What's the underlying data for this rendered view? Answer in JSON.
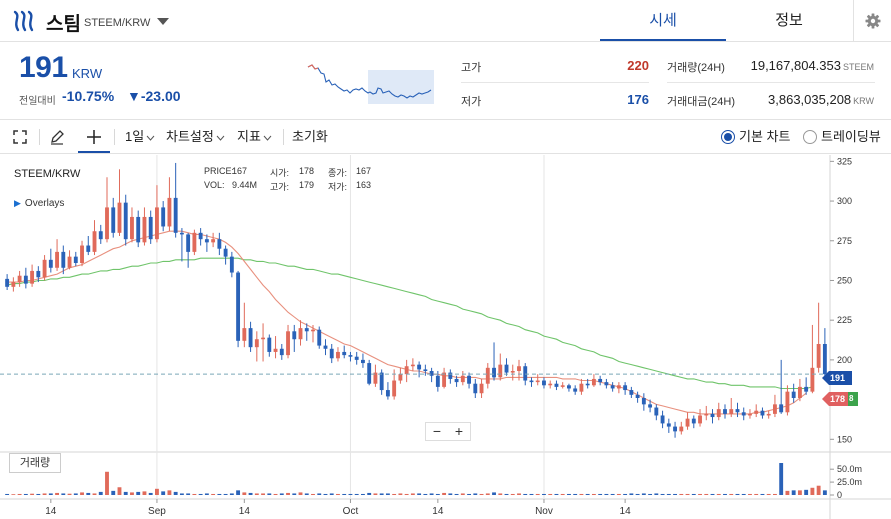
{
  "header": {
    "coin_name": "스팀",
    "pair": "STEEM/KRW",
    "tabs": [
      {
        "label": "시세",
        "active": true
      },
      {
        "label": "정보",
        "active": false
      }
    ],
    "icons": {
      "logo": "steem-logo-icon",
      "dropdown": "caret-down-icon",
      "settings": "gear-icon"
    }
  },
  "summary": {
    "price": "191",
    "unit": "KRW",
    "prev_label": "전일대비",
    "change_pct": "-10.75%",
    "change_abs": "▼-23.00",
    "high_label": "고가",
    "high_value": "220",
    "low_label": "저가",
    "low_value": "176",
    "volume_label": "거래량(24H)",
    "volume_value": "19,167,804.353",
    "volume_unit": "STEEM",
    "amount_label": "거래대금(24H)",
    "amount_value": "3,863,035,208",
    "amount_unit": "KRW"
  },
  "toolbar": {
    "interval": "1일",
    "chart_settings": "차트설정",
    "indicators": "지표",
    "reset": "초기화",
    "chart_mode_basic": "기본 차트",
    "chart_mode_tradingview": "트레이딩뷰",
    "icons": {
      "fullscreen": "fullscreen-icon",
      "draw": "pencil-icon",
      "crosshair": "crosshair-icon",
      "dropdown": "chevron-down-icon"
    }
  },
  "chart": {
    "symbol": "STEEM/KRW",
    "overlays_label": "Overlays",
    "legend": {
      "price_label": "PRICE:",
      "price_value": "167",
      "open_label": "시가:",
      "open_value": "178",
      "close_label": "종가:",
      "close_value": "167",
      "vol_label": "VOL:",
      "vol_value": "9.44M",
      "high_label": "고가:",
      "high_value": "179",
      "low_label": "저가:",
      "low_value": "163"
    },
    "volume_button": "거래량",
    "current_price_tag": "191",
    "ma_tag": "178",
    "zoom_minus": "−",
    "zoom_plus": "+",
    "colors": {
      "up": "#e06a5a",
      "down": "#2a62b8",
      "ma_short": "#e8907e",
      "ma_long": "#6fc46a",
      "current": "#1a4fa8"
    }
  },
  "chart_data": {
    "type": "candlestick",
    "y_ticks": [
      150,
      175,
      200,
      225,
      250,
      275,
      300,
      325
    ],
    "ylim": [
      142,
      329
    ],
    "volume_ticks": [
      "50.0m",
      "25.0m",
      "0"
    ],
    "x_ticks": [
      "14",
      "Sep",
      "14",
      "Oct",
      "14",
      "Nov",
      "14"
    ],
    "candles": [
      [
        251,
        246,
        254,
        244
      ],
      [
        246,
        249,
        252,
        243
      ],
      [
        249,
        253,
        256,
        246
      ],
      [
        253,
        248,
        258,
        245
      ],
      [
        248,
        256,
        260,
        246
      ],
      [
        256,
        252,
        259,
        249
      ],
      [
        252,
        263,
        266,
        250
      ],
      [
        263,
        258,
        270,
        255
      ],
      [
        258,
        268,
        276,
        256
      ],
      [
        268,
        258,
        272,
        254
      ],
      [
        258,
        265,
        269,
        257
      ],
      [
        265,
        261,
        268,
        259
      ],
      [
        261,
        272,
        275,
        259
      ],
      [
        272,
        268,
        278,
        266
      ],
      [
        268,
        281,
        288,
        266
      ],
      [
        281,
        276,
        285,
        273
      ],
      [
        276,
        296,
        315,
        274
      ],
      [
        296,
        280,
        302,
        277
      ],
      [
        280,
        299,
        320,
        278
      ],
      [
        299,
        276,
        304,
        272
      ],
      [
        276,
        290,
        296,
        274
      ],
      [
        290,
        274,
        294,
        271
      ],
      [
        274,
        290,
        296,
        272
      ],
      [
        290,
        276,
        294,
        273
      ],
      [
        276,
        296,
        310,
        274
      ],
      [
        296,
        284,
        300,
        281
      ],
      [
        284,
        302,
        315,
        281
      ],
      [
        302,
        280,
        324,
        277
      ],
      [
        280,
        279,
        283,
        262
      ],
      [
        279,
        268,
        280,
        258
      ],
      [
        268,
        280,
        282,
        266
      ],
      [
        280,
        276,
        283,
        272
      ],
      [
        276,
        274,
        279,
        268
      ],
      [
        274,
        276,
        280,
        271
      ],
      [
        276,
        270,
        280,
        266
      ],
      [
        270,
        265,
        272,
        260
      ],
      [
        265,
        255,
        268,
        252
      ],
      [
        255,
        212,
        256,
        208
      ],
      [
        212,
        220,
        236,
        208
      ],
      [
        220,
        208,
        224,
        205
      ],
      [
        208,
        213,
        218,
        199
      ],
      [
        213,
        214,
        223,
        199
      ],
      [
        214,
        205,
        216,
        202
      ],
      [
        205,
        207,
        215,
        201
      ],
      [
        207,
        203,
        210,
        200
      ],
      [
        203,
        218,
        222,
        201
      ],
      [
        218,
        213,
        222,
        205
      ],
      [
        213,
        220,
        225,
        209
      ],
      [
        220,
        218,
        223,
        212
      ],
      [
        218,
        219,
        222,
        211
      ],
      [
        219,
        209,
        221,
        207
      ],
      [
        209,
        207,
        213,
        203
      ],
      [
        207,
        201,
        210,
        198
      ],
      [
        201,
        205,
        208,
        199
      ],
      [
        205,
        203,
        209,
        201
      ],
      [
        203,
        202,
        205,
        199
      ],
      [
        202,
        200,
        205,
        197
      ],
      [
        200,
        198,
        204,
        195
      ],
      [
        198,
        185,
        200,
        184
      ],
      [
        185,
        192,
        197,
        183
      ],
      [
        192,
        181,
        194,
        178
      ],
      [
        181,
        177,
        186,
        175
      ],
      [
        177,
        187,
        194,
        175
      ],
      [
        187,
        191,
        195,
        185
      ],
      [
        191,
        196,
        200,
        186
      ],
      [
        196,
        197,
        201,
        193
      ],
      [
        197,
        194,
        199,
        189
      ],
      [
        194,
        193,
        197,
        190
      ],
      [
        193,
        190,
        195,
        186
      ],
      [
        190,
        183,
        193,
        180
      ],
      [
        183,
        192,
        195,
        182
      ],
      [
        192,
        188,
        194,
        185
      ],
      [
        188,
        186,
        190,
        183
      ],
      [
        186,
        190,
        193,
        184
      ],
      [
        190,
        185,
        192,
        182
      ],
      [
        185,
        179,
        188,
        176
      ],
      [
        179,
        185,
        188,
        176
      ],
      [
        185,
        195,
        198,
        182
      ],
      [
        195,
        189,
        211,
        187
      ],
      [
        189,
        197,
        204,
        187
      ],
      [
        197,
        192,
        201,
        190
      ],
      [
        192,
        193,
        197,
        187
      ],
      [
        193,
        196,
        200,
        187
      ],
      [
        196,
        187,
        198,
        184
      ],
      [
        187,
        186,
        189,
        183
      ],
      [
        186,
        187,
        191,
        184
      ],
      [
        187,
        184,
        189,
        182
      ],
      [
        184,
        185,
        187,
        182
      ],
      [
        185,
        183,
        187,
        181
      ],
      [
        183,
        184,
        186,
        182
      ],
      [
        184,
        182,
        185,
        180
      ],
      [
        182,
        180,
        184,
        178
      ],
      [
        180,
        185,
        188,
        178
      ],
      [
        185,
        184,
        188,
        182
      ],
      [
        184,
        188,
        191,
        183
      ],
      [
        188,
        186,
        190,
        184
      ],
      [
        186,
        184,
        188,
        182
      ],
      [
        184,
        182,
        186,
        180
      ],
      [
        182,
        184,
        186,
        179
      ],
      [
        184,
        181,
        186,
        178
      ],
      [
        181,
        178,
        183,
        176
      ],
      [
        178,
        176,
        180,
        173
      ],
      [
        176,
        172,
        179,
        168
      ],
      [
        172,
        170,
        175,
        167
      ],
      [
        170,
        165,
        172,
        162
      ],
      [
        165,
        160,
        168,
        157
      ],
      [
        160,
        158,
        163,
        154
      ],
      [
        158,
        155,
        161,
        151
      ],
      [
        155,
        158,
        161,
        153
      ],
      [
        158,
        163,
        167,
        156
      ],
      [
        163,
        160,
        165,
        157
      ],
      [
        160,
        165,
        169,
        158
      ],
      [
        165,
        166,
        171,
        162
      ],
      [
        166,
        164,
        169,
        160
      ],
      [
        164,
        169,
        173,
        162
      ],
      [
        169,
        166,
        172,
        163
      ],
      [
        166,
        169,
        176,
        164
      ],
      [
        169,
        167,
        173,
        164
      ],
      [
        167,
        165,
        170,
        162
      ],
      [
        165,
        166,
        169,
        163
      ],
      [
        166,
        168,
        172,
        164
      ],
      [
        168,
        165,
        170,
        163
      ],
      [
        165,
        166,
        168,
        163
      ],
      [
        166,
        172,
        178,
        164
      ],
      [
        172,
        167,
        200,
        166
      ],
      [
        167,
        180,
        184,
        165
      ],
      [
        180,
        176,
        185,
        173
      ],
      [
        176,
        183,
        188,
        174
      ],
      [
        183,
        180,
        189,
        178
      ],
      [
        180,
        195,
        222,
        179
      ],
      [
        195,
        210,
        236,
        192
      ],
      [
        210,
        191,
        220,
        188
      ]
    ],
    "ma_short": [
      249,
      249,
      249,
      250,
      250,
      251,
      252,
      253,
      254,
      256,
      258,
      259,
      260,
      262,
      264,
      266,
      268,
      270,
      271,
      273,
      275,
      276,
      277,
      278,
      279,
      280,
      281,
      281,
      281,
      280,
      279,
      279,
      278,
      277,
      276,
      274,
      271,
      267,
      262,
      257,
      252,
      247,
      243,
      238,
      234,
      230,
      227,
      224,
      222,
      220,
      218,
      216,
      214,
      212,
      210,
      209,
      207,
      205,
      203,
      201,
      199,
      197,
      196,
      195,
      194,
      193,
      193,
      192,
      191,
      191,
      190,
      190,
      189,
      189,
      189,
      189,
      188,
      188,
      188,
      188,
      189,
      189,
      189,
      189,
      189,
      189,
      189,
      189,
      189,
      188,
      188,
      188,
      187,
      187,
      187,
      186,
      185,
      184,
      183,
      182,
      180,
      178,
      176,
      174,
      172,
      171,
      170,
      169,
      168,
      167,
      167,
      166,
      166,
      166,
      166,
      166,
      166,
      166,
      166,
      166,
      167,
      167,
      168,
      169,
      170,
      171,
      173,
      176,
      179
    ],
    "ma_long": [
      247,
      248,
      248,
      249,
      249,
      250,
      250,
      251,
      251,
      252,
      252,
      253,
      254,
      254,
      255,
      256,
      256,
      257,
      257,
      258,
      259,
      259,
      260,
      261,
      261,
      262,
      262,
      263,
      263,
      263,
      263,
      264,
      264,
      264,
      264,
      264,
      264,
      264,
      263,
      263,
      262,
      262,
      261,
      261,
      260,
      259,
      259,
      258,
      257,
      257,
      256,
      255,
      254,
      254,
      253,
      252,
      251,
      250,
      249,
      248,
      247,
      246,
      245,
      244,
      243,
      242,
      241,
      240,
      238,
      237,
      236,
      235,
      234,
      232,
      231,
      230,
      229,
      227,
      226,
      225,
      223,
      222,
      221,
      219,
      218,
      217,
      215,
      214,
      213,
      211,
      210,
      209,
      207,
      206,
      205,
      203,
      202,
      201,
      199,
      198,
      197,
      196,
      195,
      194,
      193,
      192,
      191,
      190,
      189,
      188,
      188,
      187,
      186,
      186,
      185,
      185,
      184,
      184,
      184,
      183,
      183,
      183,
      183,
      183,
      182,
      182,
      182,
      182,
      182,
      183
    ],
    "volumes": [
      2,
      1.5,
      2,
      2,
      2.5,
      2,
      3,
      3,
      4,
      3,
      2.5,
      3,
      5,
      4,
      3,
      6,
      45,
      8,
      15,
      6,
      5,
      6,
      7,
      4,
      12,
      7,
      9,
      6,
      3,
      3,
      2,
      2,
      3,
      2,
      2,
      2,
      3,
      9,
      5,
      4,
      3,
      3,
      3,
      2,
      3,
      4,
      3,
      5,
      3,
      2,
      3,
      2,
      3,
      2,
      2,
      2,
      2,
      2,
      4,
      3,
      3,
      3,
      2,
      3,
      2,
      3,
      3,
      2,
      3,
      2,
      4,
      3,
      2,
      3,
      2,
      3,
      2,
      3,
      5,
      3,
      2,
      2,
      3,
      2,
      2,
      2,
      2,
      2,
      2,
      2,
      2,
      2,
      2,
      2,
      2,
      2,
      2,
      2,
      2,
      2,
      3,
      2,
      3,
      2,
      3,
      2,
      2,
      2,
      2,
      2,
      2,
      2,
      2,
      2,
      2,
      2,
      2,
      2,
      2,
      2,
      2,
      2,
      2,
      2,
      62,
      8,
      9,
      9,
      10,
      14,
      18,
      9
    ]
  }
}
